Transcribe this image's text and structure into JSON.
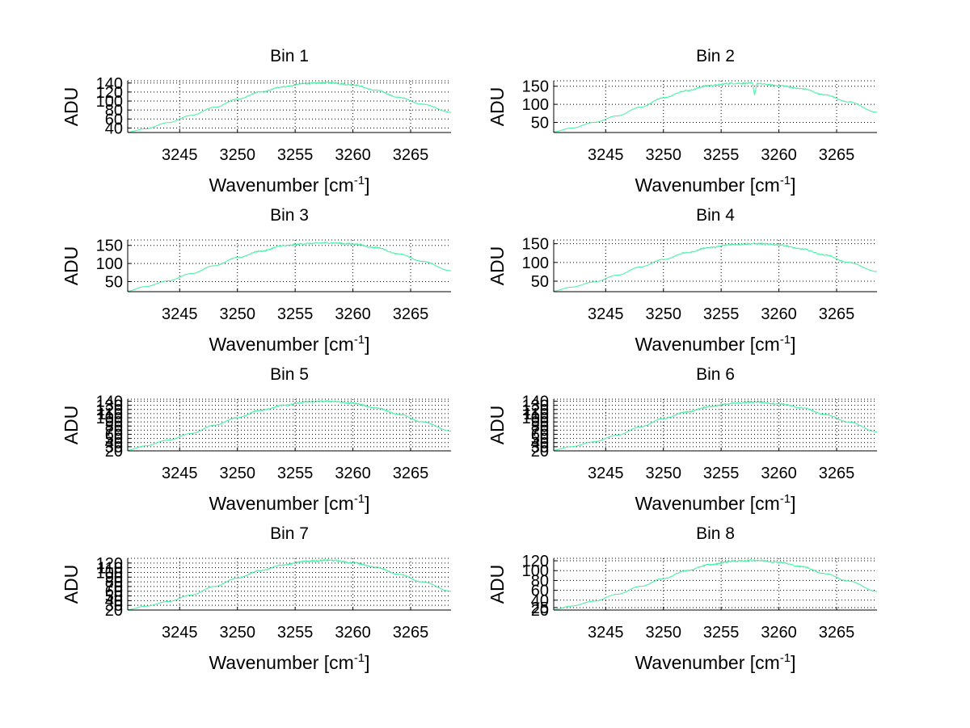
{
  "figure": {
    "background": "#ffffff",
    "line_color": "#40f0a0"
  },
  "chart_data": [
    {
      "type": "line",
      "title": "Bin 1",
      "xlabel": "Wavenumber [cm",
      "xlabel_sup": "-1",
      "xlabel_end": "]",
      "ylabel": "ADU",
      "xlim": [
        3240.5,
        3268.5
      ],
      "ylim": [
        30,
        145
      ],
      "xticks": [
        3245,
        3250,
        3255,
        3260,
        3265
      ],
      "yticks": [
        40,
        60,
        80,
        100,
        120,
        140
      ],
      "grid": true,
      "series": [
        {
          "name": "Bin 1",
          "color": "#40f0a0",
          "x": [
            3240.5,
            3242,
            3244,
            3246,
            3248,
            3250,
            3252,
            3254,
            3256,
            3258,
            3260,
            3262,
            3264,
            3266,
            3268.5
          ],
          "y": [
            31,
            38,
            52,
            68,
            86,
            104,
            120,
            132,
            139,
            141,
            136,
            124,
            108,
            93,
            75
          ]
        }
      ]
    },
    {
      "type": "line",
      "title": "Bin 2",
      "xlabel": "Wavenumber [cm",
      "xlabel_sup": "-1",
      "xlabel_end": "]",
      "ylabel": "ADU",
      "xlim": [
        3240.5,
        3268.5
      ],
      "ylim": [
        22,
        165
      ],
      "xticks": [
        3245,
        3250,
        3255,
        3260,
        3265
      ],
      "yticks": [
        50,
        100,
        150
      ],
      "grid": true,
      "series": [
        {
          "name": "Bin 2",
          "color": "#40f0a0",
          "x": [
            3240.5,
            3242,
            3244,
            3246,
            3248,
            3250,
            3252,
            3254,
            3256,
            3257.7,
            3257.9,
            3258.1,
            3260,
            3262,
            3264,
            3266,
            3268.5
          ],
          "y": [
            24,
            34,
            50,
            68,
            92,
            118,
            138,
            152,
            158,
            158,
            128,
            157,
            152,
            143,
            126,
            107,
            78
          ]
        }
      ]
    },
    {
      "type": "line",
      "title": "Bin 3",
      "xlabel": "Wavenumber [cm",
      "xlabel_sup": "-1",
      "xlabel_end": "]",
      "ylabel": "ADU",
      "xlim": [
        3240.5,
        3268.5
      ],
      "ylim": [
        22,
        165
      ],
      "xticks": [
        3245,
        3250,
        3255,
        3260,
        3265
      ],
      "yticks": [
        50,
        100,
        150
      ],
      "grid": true,
      "series": [
        {
          "name": "Bin 3",
          "color": "#40f0a0",
          "x": [
            3240.5,
            3242,
            3244,
            3246,
            3248,
            3250,
            3252,
            3254,
            3256,
            3258,
            3260,
            3262,
            3264,
            3266,
            3268.5
          ],
          "y": [
            24,
            36,
            52,
            72,
            94,
            116,
            134,
            149,
            155,
            157,
            154,
            144,
            126,
            106,
            80
          ]
        }
      ]
    },
    {
      "type": "line",
      "title": "Bin 4",
      "xlabel": "Wavenumber [cm",
      "xlabel_sup": "-1",
      "xlabel_end": "]",
      "ylabel": "ADU",
      "xlim": [
        3240.5,
        3268.5
      ],
      "ylim": [
        22,
        160
      ],
      "xticks": [
        3245,
        3250,
        3255,
        3260,
        3265
      ],
      "yticks": [
        50,
        100,
        150
      ],
      "grid": true,
      "series": [
        {
          "name": "Bin 4",
          "color": "#40f0a0",
          "x": [
            3240.5,
            3242,
            3244,
            3246,
            3248,
            3250,
            3252,
            3254,
            3256,
            3258,
            3260,
            3262,
            3264,
            3266,
            3268.5
          ],
          "y": [
            24,
            34,
            48,
            66,
            88,
            108,
            126,
            140,
            148,
            150,
            147,
            136,
            120,
            100,
            76
          ]
        }
      ]
    },
    {
      "type": "line",
      "title": "Bin 5",
      "xlabel": "Wavenumber [cm",
      "xlabel_sup": "-1",
      "xlabel_end": "]",
      "ylabel": "ADU",
      "xlim": [
        3240.5,
        3268.5
      ],
      "ylim": [
        20,
        145
      ],
      "xticks": [
        3245,
        3250,
        3255,
        3260,
        3265
      ],
      "yticks": [
        20,
        30,
        40,
        50,
        60,
        70,
        80,
        90,
        100,
        110,
        120,
        130,
        140
      ],
      "grid": true,
      "series": [
        {
          "name": "Bin 5",
          "color": "#40f0a0",
          "x": [
            3240.5,
            3242,
            3244,
            3246,
            3248,
            3250,
            3252,
            3254,
            3256,
            3258,
            3260,
            3262,
            3264,
            3266,
            3268.5
          ],
          "y": [
            22,
            32,
            46,
            62,
            82,
            100,
            118,
            130,
            138,
            140,
            135,
            124,
            108,
            90,
            68
          ]
        }
      ]
    },
    {
      "type": "line",
      "title": "Bin 6",
      "xlabel": "Wavenumber [cm",
      "xlabel_sup": "-1",
      "xlabel_end": "]",
      "ylabel": "ADU",
      "xlim": [
        3240.5,
        3268.5
      ],
      "ylim": [
        20,
        145
      ],
      "xticks": [
        3245,
        3250,
        3255,
        3260,
        3265
      ],
      "yticks": [
        20,
        30,
        40,
        50,
        60,
        70,
        80,
        90,
        100,
        110,
        120,
        130,
        140
      ],
      "grid": true,
      "series": [
        {
          "name": "Bin 6",
          "color": "#40f0a0",
          "x": [
            3240.5,
            3242,
            3244,
            3246,
            3248,
            3250,
            3252,
            3254,
            3256,
            3258,
            3260,
            3262,
            3264,
            3266,
            3268.5
          ],
          "y": [
            22,
            30,
            42,
            58,
            78,
            98,
            114,
            127,
            135,
            138,
            134,
            124,
            108,
            90,
            66
          ]
        }
      ]
    },
    {
      "type": "line",
      "title": "Bin 7",
      "xlabel": "Wavenumber [cm",
      "xlabel_sup": "-1",
      "xlabel_end": "]",
      "ylabel": "ADU",
      "xlim": [
        3240.5,
        3268.5
      ],
      "ylim": [
        20,
        130
      ],
      "xticks": [
        3245,
        3250,
        3255,
        3260,
        3265
      ],
      "yticks": [
        20,
        30,
        40,
        50,
        60,
        70,
        80,
        90,
        100,
        110,
        120
      ],
      "grid": true,
      "series": [
        {
          "name": "Bin 7",
          "color": "#40f0a0",
          "x": [
            3240.5,
            3242,
            3244,
            3246,
            3248,
            3250,
            3252,
            3254,
            3256,
            3258,
            3260,
            3262,
            3264,
            3266,
            3268.5
          ],
          "y": [
            21,
            28,
            38,
            52,
            70,
            88,
            104,
            116,
            124,
            126,
            121,
            111,
            96,
            80,
            60
          ]
        }
      ]
    },
    {
      "type": "line",
      "title": "Bin 8",
      "xlabel": "Wavenumber [cm",
      "xlabel_sup": "-1",
      "xlabel_end": "]",
      "ylabel": "ADU",
      "xlim": [
        3240.5,
        3268.5
      ],
      "ylim": [
        20,
        125
      ],
      "xticks": [
        3245,
        3250,
        3255,
        3260,
        3265
      ],
      "yticks": [
        20,
        25,
        40,
        60,
        80,
        100,
        120
      ],
      "grid": true,
      "series": [
        {
          "name": "Bin 8",
          "color": "#40f0a0",
          "x": [
            3240.5,
            3242,
            3244,
            3246,
            3248,
            3250,
            3252,
            3254,
            3256,
            3258,
            3260,
            3262,
            3264,
            3266,
            3268.5
          ],
          "y": [
            21,
            28,
            38,
            52,
            68,
            84,
            100,
            112,
            119,
            121,
            117,
            108,
            94,
            79,
            58
          ]
        }
      ]
    }
  ]
}
